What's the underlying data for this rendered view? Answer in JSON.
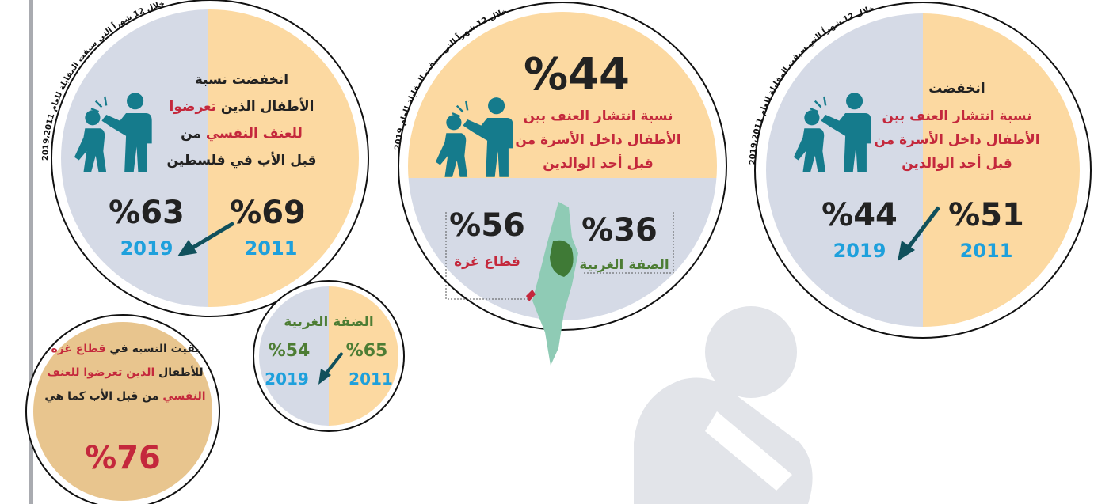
{
  "panels": {
    "right": {
      "arc": "خلال 12 شهراً التي سبقت المقابلة للعام 2019،2011",
      "lines": [
        "انخفضت",
        "نسبة انتشار العنف بين",
        "الأطفال داخل الأسرة من",
        "قبل أحد الوالدين"
      ],
      "value_2011": "%51",
      "year_2011": "2011",
      "value_2019": "%44",
      "year_2019": "2019"
    },
    "middle": {
      "arc": "خلال 12 شهراً التي سبقت المقابلة للعام 2019",
      "total": "%44",
      "lines": [
        "نسبة انتشار العنف بين",
        "الأطفال داخل الأسرة من",
        "قبل أحد الوالدين"
      ],
      "west_bank_value": "%36",
      "west_bank": "الضفة الغربية",
      "gaza_value": "%56",
      "gaza": "قطاع غزة"
    },
    "left": {
      "arc": "خلال 12 شهراً التي سبقت المقابلة للعام 2019،2011",
      "lines": [
        [
          "انخفضت نسبة"
        ],
        [
          "الأطفال الذين ",
          "تعرضوا"
        ],
        [
          "للعنف النفسي",
          " من"
        ],
        [
          "قبل الأب في فلسطين"
        ]
      ],
      "value_2011": "%69",
      "year_2011": "2011",
      "value_2019": "%63",
      "year_2019": "2019"
    },
    "west_bank": {
      "title": "الضفة الغربية",
      "value_2011": "%65",
      "year_2011": "2011",
      "value_2019": "%54",
      "year_2019": "2019"
    },
    "gaza": {
      "lines": [
        [
          "بقيت النسبة في ",
          "قطاع غزة"
        ],
        [
          "للأطفال ",
          "الذين تعرضوا للعنف"
        ],
        [
          "النفسي",
          " من قبل الأب كما هي"
        ]
      ],
      "value": "%76"
    }
  }
}
